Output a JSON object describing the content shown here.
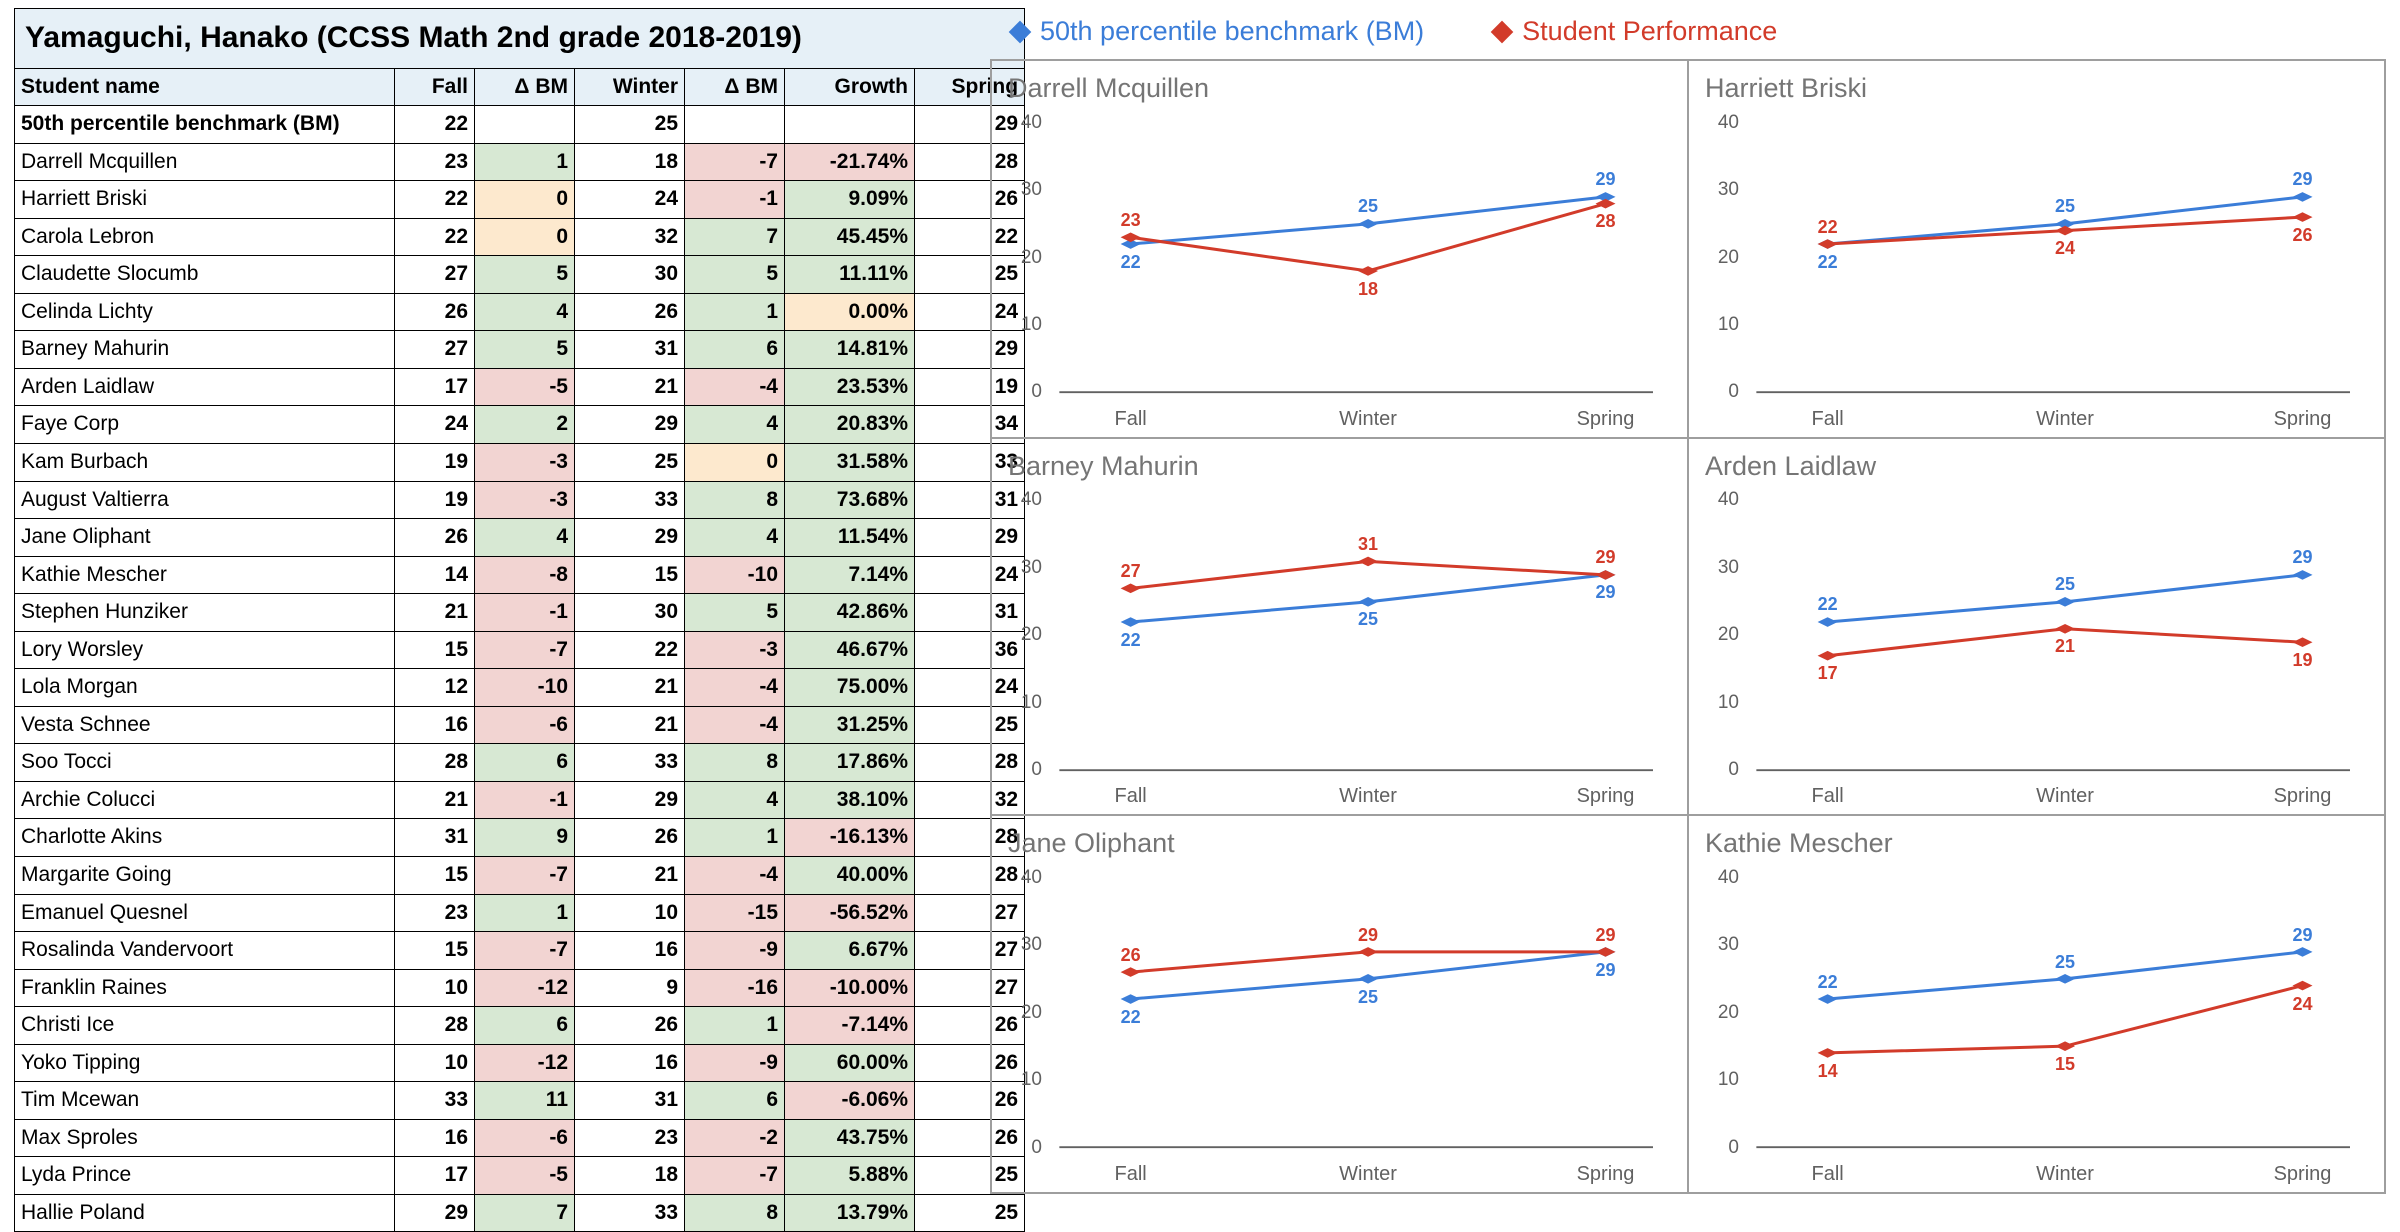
{
  "colors": {
    "header_bg": "#e6f0f7",
    "delta_pos": "#d7e8d3",
    "delta_zero": "#fde9ce",
    "delta_neg": "#f2d4d2",
    "growth_pos": "#d7e8d3",
    "growth_zero": "#fde9ce",
    "growth_neg": "#f2d4d2",
    "bm_series": "#3b7dd8",
    "student_series": "#d23b2a",
    "axis": "#616161",
    "grid": "#9e9e9e",
    "chart_title": "#757575"
  },
  "table": {
    "title": "Yamaguchi, Hanako (CCSS Math 2nd grade 2018-2019)",
    "columns": [
      "Student name",
      "Fall",
      "Δ BM",
      "Winter",
      "Δ BM",
      "Growth",
      "Spring"
    ],
    "benchmark_row": {
      "label": "50th percentile benchmark (BM)",
      "fall": 22,
      "winter": 25,
      "spring": 29
    },
    "rows": [
      {
        "name": "Darrell Mcquillen",
        "fall": 23,
        "d1": 1,
        "winter": 18,
        "d2": -7,
        "growth": "-21.74%",
        "g": -21.74,
        "spring": 28
      },
      {
        "name": "Harriett Briski",
        "fall": 22,
        "d1": 0,
        "winter": 24,
        "d2": -1,
        "growth": "9.09%",
        "g": 9.09,
        "spring": 26
      },
      {
        "name": "Carola Lebron",
        "fall": 22,
        "d1": 0,
        "winter": 32,
        "d2": 7,
        "growth": "45.45%",
        "g": 45.45,
        "spring": 22
      },
      {
        "name": "Claudette Slocumb",
        "fall": 27,
        "d1": 5,
        "winter": 30,
        "d2": 5,
        "growth": "11.11%",
        "g": 11.11,
        "spring": 25
      },
      {
        "name": "Celinda Lichty",
        "fall": 26,
        "d1": 4,
        "winter": 26,
        "d2": 1,
        "growth": "0.00%",
        "g": 0.0,
        "spring": 24
      },
      {
        "name": "Barney Mahurin",
        "fall": 27,
        "d1": 5,
        "winter": 31,
        "d2": 6,
        "growth": "14.81%",
        "g": 14.81,
        "spring": 29
      },
      {
        "name": "Arden Laidlaw",
        "fall": 17,
        "d1": -5,
        "winter": 21,
        "d2": -4,
        "growth": "23.53%",
        "g": 23.53,
        "spring": 19
      },
      {
        "name": "Faye Corp",
        "fall": 24,
        "d1": 2,
        "winter": 29,
        "d2": 4,
        "growth": "20.83%",
        "g": 20.83,
        "spring": 34
      },
      {
        "name": "Kam Burbach",
        "fall": 19,
        "d1": -3,
        "winter": 25,
        "d2": 0,
        "growth": "31.58%",
        "g": 31.58,
        "spring": 33
      },
      {
        "name": "August Valtierra",
        "fall": 19,
        "d1": -3,
        "winter": 33,
        "d2": 8,
        "growth": "73.68%",
        "g": 73.68,
        "spring": 31
      },
      {
        "name": "Jane Oliphant",
        "fall": 26,
        "d1": 4,
        "winter": 29,
        "d2": 4,
        "growth": "11.54%",
        "g": 11.54,
        "spring": 29
      },
      {
        "name": "Kathie Mescher",
        "fall": 14,
        "d1": -8,
        "winter": 15,
        "d2": -10,
        "growth": "7.14%",
        "g": 7.14,
        "spring": 24
      },
      {
        "name": "Stephen Hunziker",
        "fall": 21,
        "d1": -1,
        "winter": 30,
        "d2": 5,
        "growth": "42.86%",
        "g": 42.86,
        "spring": 31
      },
      {
        "name": "Lory Worsley",
        "fall": 15,
        "d1": -7,
        "winter": 22,
        "d2": -3,
        "growth": "46.67%",
        "g": 46.67,
        "spring": 36
      },
      {
        "name": "Lola Morgan",
        "fall": 12,
        "d1": -10,
        "winter": 21,
        "d2": -4,
        "growth": "75.00%",
        "g": 75.0,
        "spring": 24
      },
      {
        "name": "Vesta Schnee",
        "fall": 16,
        "d1": -6,
        "winter": 21,
        "d2": -4,
        "growth": "31.25%",
        "g": 31.25,
        "spring": 25
      },
      {
        "name": "Soo Tocci",
        "fall": 28,
        "d1": 6,
        "winter": 33,
        "d2": 8,
        "growth": "17.86%",
        "g": 17.86,
        "spring": 28
      },
      {
        "name": "Archie Colucci",
        "fall": 21,
        "d1": -1,
        "winter": 29,
        "d2": 4,
        "growth": "38.10%",
        "g": 38.1,
        "spring": 32
      },
      {
        "name": "Charlotte Akins",
        "fall": 31,
        "d1": 9,
        "winter": 26,
        "d2": 1,
        "growth": "-16.13%",
        "g": -16.13,
        "spring": 28
      },
      {
        "name": "Margarite Going",
        "fall": 15,
        "d1": -7,
        "winter": 21,
        "d2": -4,
        "growth": "40.00%",
        "g": 40.0,
        "spring": 28
      },
      {
        "name": "Emanuel Quesnel",
        "fall": 23,
        "d1": 1,
        "winter": 10,
        "d2": -15,
        "growth": "-56.52%",
        "g": -56.52,
        "spring": 27
      },
      {
        "name": "Rosalinda Vandervoort",
        "fall": 15,
        "d1": -7,
        "winter": 16,
        "d2": -9,
        "growth": "6.67%",
        "g": 6.67,
        "spring": 27
      },
      {
        "name": "Franklin Raines",
        "fall": 10,
        "d1": -12,
        "winter": 9,
        "d2": -16,
        "growth": "-10.00%",
        "g": -10.0,
        "spring": 27
      },
      {
        "name": "Christi Ice",
        "fall": 28,
        "d1": 6,
        "winter": 26,
        "d2": 1,
        "growth": "-7.14%",
        "g": -7.14,
        "spring": 26
      },
      {
        "name": "Yoko Tipping",
        "fall": 10,
        "d1": -12,
        "winter": 16,
        "d2": -9,
        "growth": "60.00%",
        "g": 60.0,
        "spring": 26
      },
      {
        "name": "Tim Mcewan",
        "fall": 33,
        "d1": 11,
        "winter": 31,
        "d2": 6,
        "growth": "-6.06%",
        "g": -6.06,
        "spring": 26
      },
      {
        "name": "Max Sproles",
        "fall": 16,
        "d1": -6,
        "winter": 23,
        "d2": -2,
        "growth": "43.75%",
        "g": 43.75,
        "spring": 26
      },
      {
        "name": "Lyda Prince",
        "fall": 17,
        "d1": -5,
        "winter": 18,
        "d2": -7,
        "growth": "5.88%",
        "g": 5.88,
        "spring": 25
      },
      {
        "name": "Hallie Poland",
        "fall": 29,
        "d1": 7,
        "winter": 33,
        "d2": 8,
        "growth": "13.79%",
        "g": 13.79,
        "spring": 25
      }
    ]
  },
  "legend": {
    "bm": "50th percentile benchmark (BM)",
    "student": "Student Performance"
  },
  "charts": {
    "type": "line",
    "x_categories": [
      "Fall",
      "Winter",
      "Spring"
    ],
    "ylim": [
      0,
      40
    ],
    "ytick_step": 10,
    "marker": "diamond",
    "marker_size": 8,
    "line_width": 3,
    "label_fontsize": 18,
    "title_fontsize": 27,
    "tick_fontsize": 19,
    "bm_values": [
      22,
      25,
      29
    ],
    "panels": [
      {
        "title": "Darrell Mcquillen",
        "student": [
          23,
          18,
          28
        ]
      },
      {
        "title": "Harriett Briski",
        "student": [
          22,
          24,
          26
        ]
      },
      {
        "title": "Barney Mahurin",
        "student": [
          27,
          31,
          29
        ]
      },
      {
        "title": "Arden Laidlaw",
        "student": [
          17,
          21,
          19
        ]
      },
      {
        "title": "Jane Oliphant",
        "student": [
          26,
          29,
          29
        ]
      },
      {
        "title": "Kathie Mescher",
        "student": [
          14,
          15,
          24
        ]
      }
    ]
  }
}
